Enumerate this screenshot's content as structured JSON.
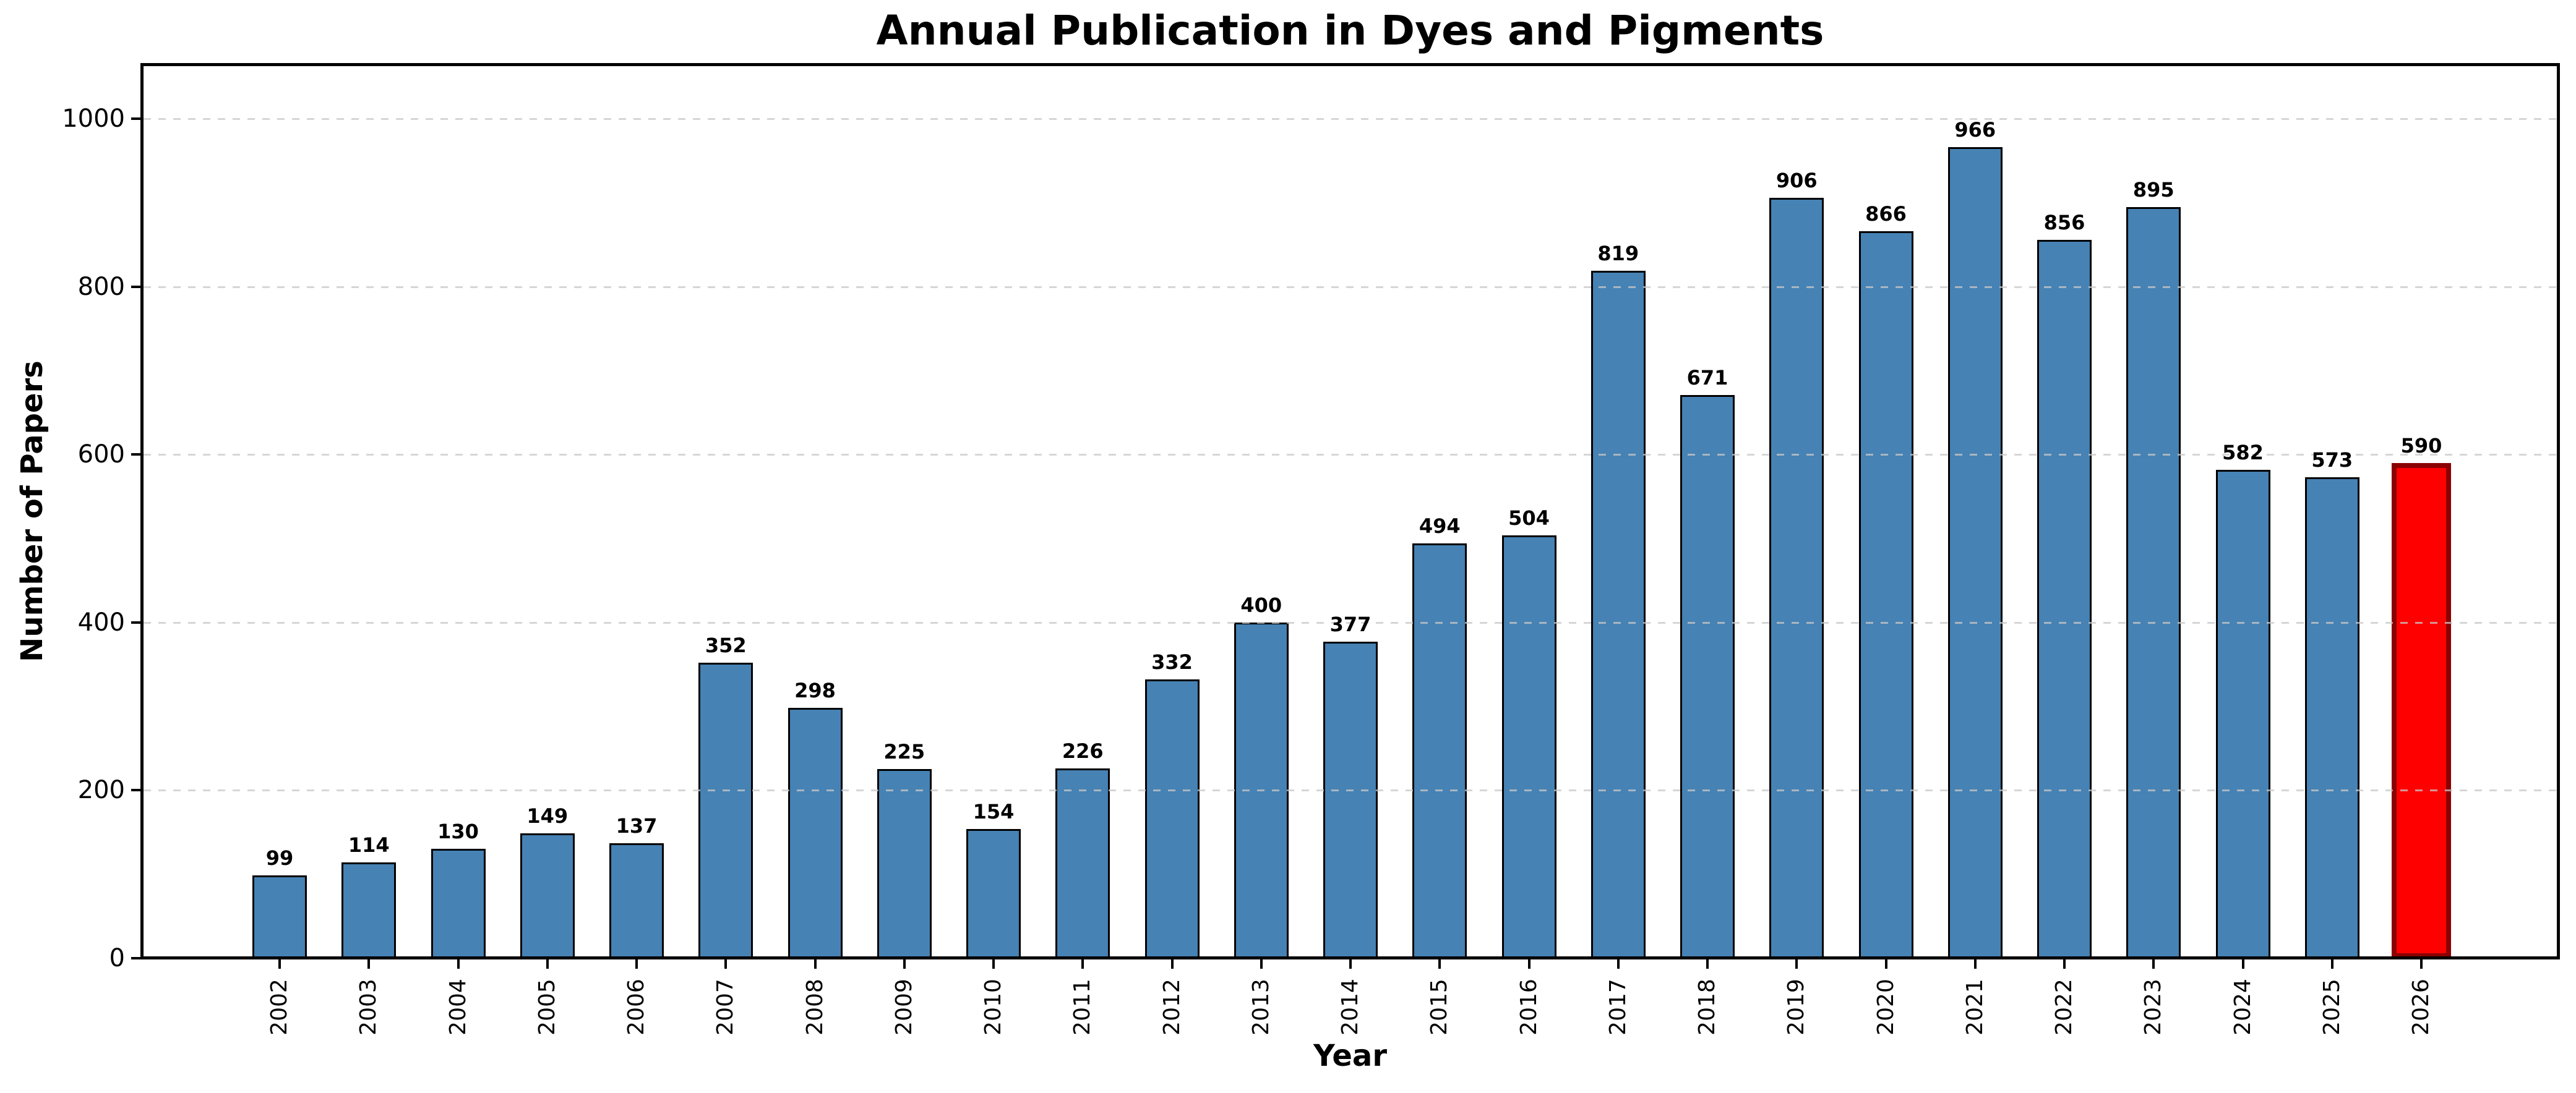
{
  "chart_data": {
    "type": "bar",
    "title": "Annual Publication in Dyes and Pigments",
    "xlabel": "Year",
    "ylabel": "Number of Papers",
    "categories": [
      "2002",
      "2003",
      "2004",
      "2005",
      "2006",
      "2007",
      "2008",
      "2009",
      "2010",
      "2011",
      "2012",
      "2013",
      "2014",
      "2015",
      "2016",
      "2017",
      "2018",
      "2019",
      "2020",
      "2021",
      "2022",
      "2023",
      "2024",
      "2025",
      "2026"
    ],
    "values": [
      99,
      114,
      130,
      149,
      137,
      352,
      298,
      225,
      154,
      226,
      332,
      400,
      377,
      494,
      504,
      819,
      671,
      906,
      866,
      966,
      856,
      895,
      582,
      573,
      590
    ],
    "value_labels_shown": true,
    "ylim": [
      0,
      1064
    ],
    "yticks": [
      0,
      200,
      400,
      600,
      800,
      1000
    ],
    "grid": "horizontal-dashed",
    "legend": "none",
    "bar_color": "#4682B4",
    "bar_edge_color": "#000000",
    "gridline_color": "#C8C8C8",
    "highlight": {
      "index": 24,
      "category": "2026",
      "color": "#FF0000",
      "edge_color": "#8B0000"
    }
  }
}
